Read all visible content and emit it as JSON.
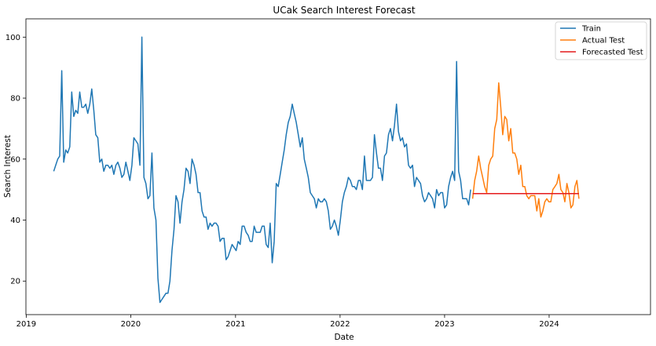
{
  "chart_data": {
    "type": "line",
    "title": "UCak Search Interest Forecast",
    "xlabel": "Date",
    "ylabel": "Search Interest",
    "xlim": [
      "2018-12-31",
      "2024-12-20"
    ],
    "ylim": [
      9,
      106
    ],
    "x_ticks": [
      "2019",
      "2020",
      "2021",
      "2022",
      "2023",
      "2024"
    ],
    "y_ticks": [
      20,
      40,
      60,
      80,
      100
    ],
    "grid": false,
    "legend_position": "top-right",
    "series": [
      {
        "name": "Train",
        "color": "#1f77b4",
        "points": [
          [
            "2019-04-07",
            56
          ],
          [
            "2019-04-14",
            58
          ],
          [
            "2019-04-21",
            60
          ],
          [
            "2019-04-28",
            61
          ],
          [
            "2019-05-05",
            89
          ],
          [
            "2019-05-12",
            59
          ],
          [
            "2019-05-19",
            63
          ],
          [
            "2019-05-26",
            62
          ],
          [
            "2019-06-02",
            64
          ],
          [
            "2019-06-09",
            82
          ],
          [
            "2019-06-16",
            74
          ],
          [
            "2019-06-23",
            76
          ],
          [
            "2019-06-30",
            75
          ],
          [
            "2019-07-07",
            82
          ],
          [
            "2019-07-14",
            77
          ],
          [
            "2019-07-21",
            77
          ],
          [
            "2019-07-28",
            78
          ],
          [
            "2019-08-04",
            75
          ],
          [
            "2019-08-11",
            78
          ],
          [
            "2019-08-18",
            83
          ],
          [
            "2019-08-25",
            76
          ],
          [
            "2019-09-01",
            68
          ],
          [
            "2019-09-08",
            67
          ],
          [
            "2019-09-15",
            59
          ],
          [
            "2019-09-22",
            60
          ],
          [
            "2019-09-29",
            56
          ],
          [
            "2019-10-06",
            58
          ],
          [
            "2019-10-13",
            58
          ],
          [
            "2019-10-20",
            57
          ],
          [
            "2019-10-27",
            58
          ],
          [
            "2019-11-03",
            55
          ],
          [
            "2019-11-10",
            58
          ],
          [
            "2019-11-17",
            59
          ],
          [
            "2019-11-24",
            57
          ],
          [
            "2019-12-01",
            54
          ],
          [
            "2019-12-08",
            55
          ],
          [
            "2019-12-15",
            59
          ],
          [
            "2019-12-22",
            56
          ],
          [
            "2019-12-29",
            53
          ],
          [
            "2020-01-05",
            58
          ],
          [
            "2020-01-12",
            67
          ],
          [
            "2020-01-19",
            66
          ],
          [
            "2020-01-26",
            65
          ],
          [
            "2020-02-02",
            58
          ],
          [
            "2020-02-09",
            100
          ],
          [
            "2020-02-16",
            54
          ],
          [
            "2020-02-23",
            52
          ],
          [
            "2020-03-01",
            47
          ],
          [
            "2020-03-08",
            48
          ],
          [
            "2020-03-15",
            62
          ],
          [
            "2020-03-22",
            44
          ],
          [
            "2020-03-29",
            40
          ],
          [
            "2020-04-05",
            21
          ],
          [
            "2020-04-12",
            13
          ],
          [
            "2020-04-19",
            14
          ],
          [
            "2020-04-26",
            15
          ],
          [
            "2020-05-03",
            16
          ],
          [
            "2020-05-10",
            16
          ],
          [
            "2020-05-17",
            20
          ],
          [
            "2020-05-24",
            30
          ],
          [
            "2020-05-31",
            37
          ],
          [
            "2020-06-07",
            48
          ],
          [
            "2020-06-14",
            46
          ],
          [
            "2020-06-21",
            39
          ],
          [
            "2020-06-28",
            46
          ],
          [
            "2020-07-05",
            50
          ],
          [
            "2020-07-12",
            57
          ],
          [
            "2020-07-19",
            56
          ],
          [
            "2020-07-26",
            52
          ],
          [
            "2020-08-02",
            60
          ],
          [
            "2020-08-09",
            58
          ],
          [
            "2020-08-16",
            55
          ],
          [
            "2020-08-23",
            49
          ],
          [
            "2020-08-30",
            49
          ],
          [
            "2020-09-06",
            43
          ],
          [
            "2020-09-13",
            41
          ],
          [
            "2020-09-20",
            41
          ],
          [
            "2020-09-27",
            37
          ],
          [
            "2020-10-04",
            39
          ],
          [
            "2020-10-11",
            38
          ],
          [
            "2020-10-18",
            39
          ],
          [
            "2020-10-25",
            39
          ],
          [
            "2020-11-01",
            38
          ],
          [
            "2020-11-08",
            33
          ],
          [
            "2020-11-15",
            34
          ],
          [
            "2020-11-22",
            34
          ],
          [
            "2020-11-29",
            27
          ],
          [
            "2020-12-06",
            28
          ],
          [
            "2020-12-13",
            30
          ],
          [
            "2020-12-20",
            32
          ],
          [
            "2020-12-27",
            31
          ],
          [
            "2021-01-03",
            30
          ],
          [
            "2021-01-10",
            33
          ],
          [
            "2021-01-17",
            32
          ],
          [
            "2021-01-24",
            38
          ],
          [
            "2021-01-31",
            38
          ],
          [
            "2021-02-07",
            36
          ],
          [
            "2021-02-14",
            35
          ],
          [
            "2021-02-21",
            33
          ],
          [
            "2021-02-28",
            33
          ],
          [
            "2021-03-07",
            38
          ],
          [
            "2021-03-14",
            36
          ],
          [
            "2021-03-21",
            36
          ],
          [
            "2021-03-28",
            36
          ],
          [
            "2021-04-04",
            38
          ],
          [
            "2021-04-11",
            38
          ],
          [
            "2021-04-18",
            32
          ],
          [
            "2021-04-25",
            31
          ],
          [
            "2021-05-02",
            39
          ],
          [
            "2021-05-09",
            26
          ],
          [
            "2021-05-16",
            33
          ],
          [
            "2021-05-23",
            52
          ],
          [
            "2021-05-30",
            51
          ],
          [
            "2021-06-06",
            55
          ],
          [
            "2021-06-13",
            59
          ],
          [
            "2021-06-20",
            63
          ],
          [
            "2021-06-27",
            68
          ],
          [
            "2021-07-04",
            72
          ],
          [
            "2021-07-11",
            74
          ],
          [
            "2021-07-18",
            78
          ],
          [
            "2021-07-25",
            75
          ],
          [
            "2021-08-01",
            72
          ],
          [
            "2021-08-08",
            68
          ],
          [
            "2021-08-15",
            64
          ],
          [
            "2021-08-22",
            67
          ],
          [
            "2021-08-29",
            60
          ],
          [
            "2021-09-05",
            57
          ],
          [
            "2021-09-12",
            54
          ],
          [
            "2021-09-19",
            49
          ],
          [
            "2021-09-26",
            48
          ],
          [
            "2021-10-03",
            47
          ],
          [
            "2021-10-10",
            44
          ],
          [
            "2021-10-17",
            47
          ],
          [
            "2021-10-24",
            46
          ],
          [
            "2021-10-31",
            46
          ],
          [
            "2021-11-07",
            47
          ],
          [
            "2021-11-14",
            46
          ],
          [
            "2021-11-21",
            43
          ],
          [
            "2021-11-28",
            37
          ],
          [
            "2021-12-05",
            38
          ],
          [
            "2021-12-12",
            40
          ],
          [
            "2021-12-19",
            38
          ],
          [
            "2021-12-26",
            35
          ],
          [
            "2022-01-02",
            40
          ],
          [
            "2022-01-09",
            46
          ],
          [
            "2022-01-16",
            49
          ],
          [
            "2022-01-23",
            51
          ],
          [
            "2022-01-30",
            54
          ],
          [
            "2022-02-06",
            53
          ],
          [
            "2022-02-13",
            51
          ],
          [
            "2022-02-20",
            51
          ],
          [
            "2022-02-27",
            50
          ],
          [
            "2022-03-06",
            53
          ],
          [
            "2022-03-13",
            53
          ],
          [
            "2022-03-20",
            50
          ],
          [
            "2022-03-27",
            61
          ],
          [
            "2022-04-03",
            53
          ],
          [
            "2022-04-10",
            53
          ],
          [
            "2022-04-17",
            53
          ],
          [
            "2022-04-24",
            54
          ],
          [
            "2022-05-01",
            68
          ],
          [
            "2022-05-08",
            62
          ],
          [
            "2022-05-15",
            57
          ],
          [
            "2022-05-22",
            57
          ],
          [
            "2022-05-29",
            53
          ],
          [
            "2022-06-05",
            61
          ],
          [
            "2022-06-12",
            62
          ],
          [
            "2022-06-19",
            68
          ],
          [
            "2022-06-26",
            70
          ],
          [
            "2022-07-03",
            66
          ],
          [
            "2022-07-10",
            71
          ],
          [
            "2022-07-17",
            78
          ],
          [
            "2022-07-24",
            69
          ],
          [
            "2022-07-31",
            66
          ],
          [
            "2022-08-07",
            67
          ],
          [
            "2022-08-14",
            64
          ],
          [
            "2022-08-21",
            65
          ],
          [
            "2022-08-28",
            58
          ],
          [
            "2022-09-04",
            57
          ],
          [
            "2022-09-11",
            58
          ],
          [
            "2022-09-18",
            51
          ],
          [
            "2022-09-25",
            54
          ],
          [
            "2022-10-02",
            53
          ],
          [
            "2022-10-09",
            52
          ],
          [
            "2022-10-16",
            48
          ],
          [
            "2022-10-23",
            46
          ],
          [
            "2022-10-30",
            47
          ],
          [
            "2022-11-06",
            49
          ],
          [
            "2022-11-13",
            48
          ],
          [
            "2022-11-20",
            47
          ],
          [
            "2022-11-27",
            44
          ],
          [
            "2022-12-04",
            50
          ],
          [
            "2022-12-11",
            48
          ],
          [
            "2022-12-18",
            49
          ],
          [
            "2022-12-25",
            49
          ],
          [
            "2023-01-01",
            44
          ],
          [
            "2023-01-08",
            45
          ],
          [
            "2023-01-15",
            51
          ],
          [
            "2023-01-22",
            54
          ],
          [
            "2023-01-29",
            56
          ],
          [
            "2023-02-05",
            53
          ],
          [
            "2023-02-12",
            92
          ],
          [
            "2023-02-19",
            56
          ],
          [
            "2023-02-26",
            53
          ],
          [
            "2023-03-05",
            47
          ],
          [
            "2023-03-12",
            47
          ],
          [
            "2023-03-19",
            47
          ],
          [
            "2023-03-26",
            45
          ],
          [
            "2023-04-02",
            50
          ]
        ]
      },
      {
        "name": "Actual Test",
        "color": "#ff7f0e",
        "points": [
          [
            "2023-04-09",
            47
          ],
          [
            "2023-04-16",
            53
          ],
          [
            "2023-04-23",
            56
          ],
          [
            "2023-04-30",
            61
          ],
          [
            "2023-05-07",
            57
          ],
          [
            "2023-05-14",
            54
          ],
          [
            "2023-05-21",
            51
          ],
          [
            "2023-05-28",
            49
          ],
          [
            "2023-06-04",
            58
          ],
          [
            "2023-06-11",
            60
          ],
          [
            "2023-06-18",
            61
          ],
          [
            "2023-06-25",
            70
          ],
          [
            "2023-07-02",
            73
          ],
          [
            "2023-07-09",
            85
          ],
          [
            "2023-07-16",
            77
          ],
          [
            "2023-07-23",
            68
          ],
          [
            "2023-07-30",
            74
          ],
          [
            "2023-08-06",
            73
          ],
          [
            "2023-08-13",
            66
          ],
          [
            "2023-08-20",
            70
          ],
          [
            "2023-08-27",
            62
          ],
          [
            "2023-09-03",
            62
          ],
          [
            "2023-09-10",
            60
          ],
          [
            "2023-09-17",
            55
          ],
          [
            "2023-09-24",
            58
          ],
          [
            "2023-10-01",
            51
          ],
          [
            "2023-10-08",
            51
          ],
          [
            "2023-10-15",
            48
          ],
          [
            "2023-10-22",
            47
          ],
          [
            "2023-10-29",
            48
          ],
          [
            "2023-11-05",
            48
          ],
          [
            "2023-11-12",
            48
          ],
          [
            "2023-11-19",
            43
          ],
          [
            "2023-11-26",
            47
          ],
          [
            "2023-12-03",
            41
          ],
          [
            "2023-12-10",
            43
          ],
          [
            "2023-12-17",
            46
          ],
          [
            "2023-12-24",
            47
          ],
          [
            "2023-12-31",
            46
          ],
          [
            "2024-01-07",
            46
          ],
          [
            "2024-01-14",
            50
          ],
          [
            "2024-01-21",
            51
          ],
          [
            "2024-01-28",
            52
          ],
          [
            "2024-02-04",
            55
          ],
          [
            "2024-02-11",
            50
          ],
          [
            "2024-02-18",
            49
          ],
          [
            "2024-02-25",
            46
          ],
          [
            "2024-03-03",
            52
          ],
          [
            "2024-03-10",
            49
          ],
          [
            "2024-03-17",
            44
          ],
          [
            "2024-03-24",
            45
          ],
          [
            "2024-03-31",
            51
          ],
          [
            "2024-04-07",
            53
          ],
          [
            "2024-04-14",
            47
          ]
        ]
      },
      {
        "name": "Forecasted Test",
        "color": "#e41a1c",
        "points": [
          [
            "2023-04-09",
            48.7
          ],
          [
            "2024-04-14",
            48.7
          ]
        ]
      }
    ]
  }
}
